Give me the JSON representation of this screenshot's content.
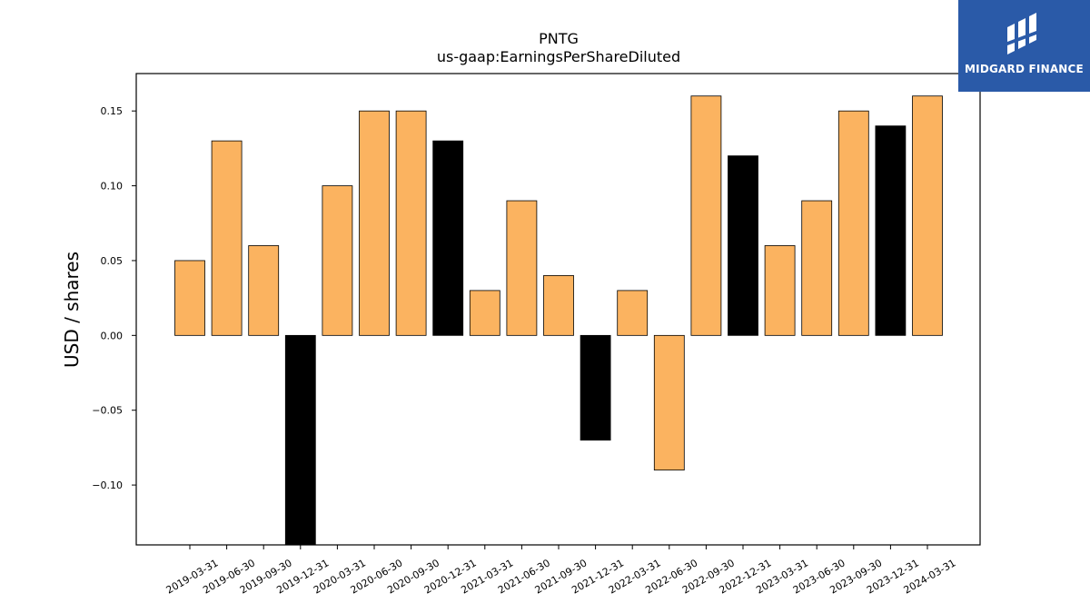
{
  "chart_data": {
    "type": "bar",
    "title": "PNTG",
    "subtitle": "us-gaap:EarningsPerShareDiluted",
    "xlabel": "",
    "ylabel": "USD / shares",
    "ylim": [
      -0.14,
      0.175
    ],
    "yticks": [
      "0.15",
      "0.10",
      "0.05",
      "0.00",
      "−0.05",
      "−0.10"
    ],
    "ytick_values": [
      0.15,
      0.1,
      0.05,
      0.0,
      -0.05,
      -0.1
    ],
    "categories": [
      "2019-03-31",
      "2019-06-30",
      "2019-09-30",
      "2019-12-31",
      "2020-03-31",
      "2020-06-30",
      "2020-09-30",
      "2020-12-31",
      "2021-03-31",
      "2021-06-30",
      "2021-09-30",
      "2021-12-31",
      "2022-03-31",
      "2022-06-30",
      "2022-09-30",
      "2022-12-31",
      "2023-03-31",
      "2023-06-30",
      "2023-09-30",
      "2023-12-31",
      "2024-03-31"
    ],
    "values": [
      0.05,
      0.13,
      0.06,
      -0.14,
      0.1,
      0.15,
      0.15,
      0.13,
      0.03,
      0.09,
      0.04,
      -0.07,
      0.03,
      -0.09,
      0.16,
      0.12,
      0.06,
      0.09,
      0.15,
      0.14,
      0.16
    ],
    "bar_colors": [
      "#fbb360",
      "#fbb360",
      "#fbb360",
      "#000000",
      "#fbb360",
      "#fbb360",
      "#fbb360",
      "#000000",
      "#fbb360",
      "#fbb360",
      "#fbb360",
      "#000000",
      "#fbb360",
      "#fbb360",
      "#fbb360",
      "#000000",
      "#fbb360",
      "#fbb360",
      "#fbb360",
      "#000000",
      "#fbb360"
    ],
    "grid": false,
    "legend": "none"
  },
  "logo": {
    "text": "MIDGARD FINANCE",
    "background": "#2a5aa8",
    "icon": "midgard-logo-icon"
  }
}
